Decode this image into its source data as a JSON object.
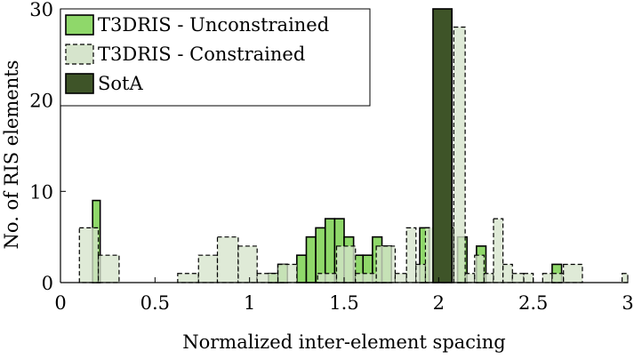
{
  "chart_data": {
    "type": "bar",
    "title": "",
    "xlabel": "Normalized inter-element spacing",
    "ylabel": "No. of RIS elements",
    "xlim": [
      0,
      3
    ],
    "ylim": [
      0,
      30
    ],
    "xticks": [
      "0",
      "0.5",
      "1",
      "1.5",
      "2",
      "2.5",
      "3"
    ],
    "yticks": [
      "0",
      "10",
      "20",
      "30"
    ],
    "legend_position": "top-left",
    "colors": {
      "unconstrained": "#8fd86a",
      "constrained": "#d6e4cc",
      "sota": "#3e5428"
    },
    "series": [
      {
        "name": "T3DRIS - Unconstrained",
        "style": "solid-edge",
        "bins": [
          {
            "x0": 0.17,
            "x1": 0.21,
            "value": 9
          },
          {
            "x0": 1.1,
            "x1": 1.15,
            "value": 1
          },
          {
            "x0": 1.15,
            "x1": 1.2,
            "value": 2
          },
          {
            "x0": 1.25,
            "x1": 1.3,
            "value": 3
          },
          {
            "x0": 1.3,
            "x1": 1.35,
            "value": 5
          },
          {
            "x0": 1.35,
            "x1": 1.4,
            "value": 6
          },
          {
            "x0": 1.4,
            "x1": 1.45,
            "value": 7
          },
          {
            "x0": 1.45,
            "x1": 1.5,
            "value": 7
          },
          {
            "x0": 1.5,
            "x1": 1.55,
            "value": 5
          },
          {
            "x0": 1.55,
            "x1": 1.6,
            "value": 3
          },
          {
            "x0": 1.6,
            "x1": 1.65,
            "value": 3
          },
          {
            "x0": 1.65,
            "x1": 1.7,
            "value": 5
          },
          {
            "x0": 1.7,
            "x1": 1.75,
            "value": 4
          },
          {
            "x0": 1.9,
            "x1": 1.95,
            "value": 6
          },
          {
            "x0": 2.1,
            "x1": 2.15,
            "value": 5
          },
          {
            "x0": 2.2,
            "x1": 2.25,
            "value": 4
          },
          {
            "x0": 2.6,
            "x1": 2.65,
            "value": 2
          }
        ]
      },
      {
        "name": "T3DRIS - Constrained",
        "style": "dashed-edge",
        "bins": [
          {
            "x0": 0.1,
            "x1": 0.2,
            "value": 6
          },
          {
            "x0": 0.2,
            "x1": 0.31,
            "value": 3
          },
          {
            "x0": 0.31,
            "x1": 0.42,
            "value": 0
          },
          {
            "x0": 0.42,
            "x1": 0.52,
            "value": 0
          },
          {
            "x0": 0.52,
            "x1": 0.62,
            "value": 0
          },
          {
            "x0": 0.62,
            "x1": 0.73,
            "value": 1
          },
          {
            "x0": 0.73,
            "x1": 0.83,
            "value": 3
          },
          {
            "x0": 0.83,
            "x1": 0.94,
            "value": 5
          },
          {
            "x0": 0.94,
            "x1": 1.04,
            "value": 4
          },
          {
            "x0": 1.04,
            "x1": 1.15,
            "value": 1
          },
          {
            "x0": 1.15,
            "x1": 1.25,
            "value": 2
          },
          {
            "x0": 1.25,
            "x1": 1.36,
            "value": 0
          },
          {
            "x0": 1.36,
            "x1": 1.46,
            "value": 1
          },
          {
            "x0": 1.46,
            "x1": 1.56,
            "value": 4
          },
          {
            "x0": 1.56,
            "x1": 1.67,
            "value": 1
          },
          {
            "x0": 1.67,
            "x1": 1.77,
            "value": 4
          },
          {
            "x0": 1.77,
            "x1": 1.83,
            "value": 1
          },
          {
            "x0": 1.83,
            "x1": 1.88,
            "value": 6
          },
          {
            "x0": 1.88,
            "x1": 1.93,
            "value": 2
          },
          {
            "x0": 1.93,
            "x1": 1.98,
            "value": 6
          },
          {
            "x0": 1.98,
            "x1": 2.03,
            "value": 3
          },
          {
            "x0": 2.03,
            "x1": 2.08,
            "value": 6
          },
          {
            "x0": 2.08,
            "x1": 2.14,
            "value": 28
          },
          {
            "x0": 2.14,
            "x1": 2.19,
            "value": 1
          },
          {
            "x0": 2.19,
            "x1": 2.24,
            "value": 3
          },
          {
            "x0": 2.24,
            "x1": 2.29,
            "value": 1
          },
          {
            "x0": 2.29,
            "x1": 2.34,
            "value": 7
          },
          {
            "x0": 2.34,
            "x1": 2.39,
            "value": 2
          },
          {
            "x0": 2.39,
            "x1": 2.45,
            "value": 1
          },
          {
            "x0": 2.45,
            "x1": 2.5,
            "value": 1
          },
          {
            "x0": 2.5,
            "x1": 2.55,
            "value": 0
          },
          {
            "x0": 2.55,
            "x1": 2.6,
            "value": 1
          },
          {
            "x0": 2.6,
            "x1": 2.66,
            "value": 1
          },
          {
            "x0": 2.66,
            "x1": 2.76,
            "value": 2
          },
          {
            "x0": 2.76,
            "x1": 2.86,
            "value": 0
          },
          {
            "x0": 2.86,
            "x1": 2.97,
            "value": 0
          },
          {
            "x0": 2.97,
            "x1": 3.0,
            "value": 1
          }
        ]
      },
      {
        "name": "SotA",
        "style": "solid-edge",
        "bins": [
          {
            "x0": 1.97,
            "x1": 2.07,
            "value": 30
          }
        ]
      }
    ]
  }
}
